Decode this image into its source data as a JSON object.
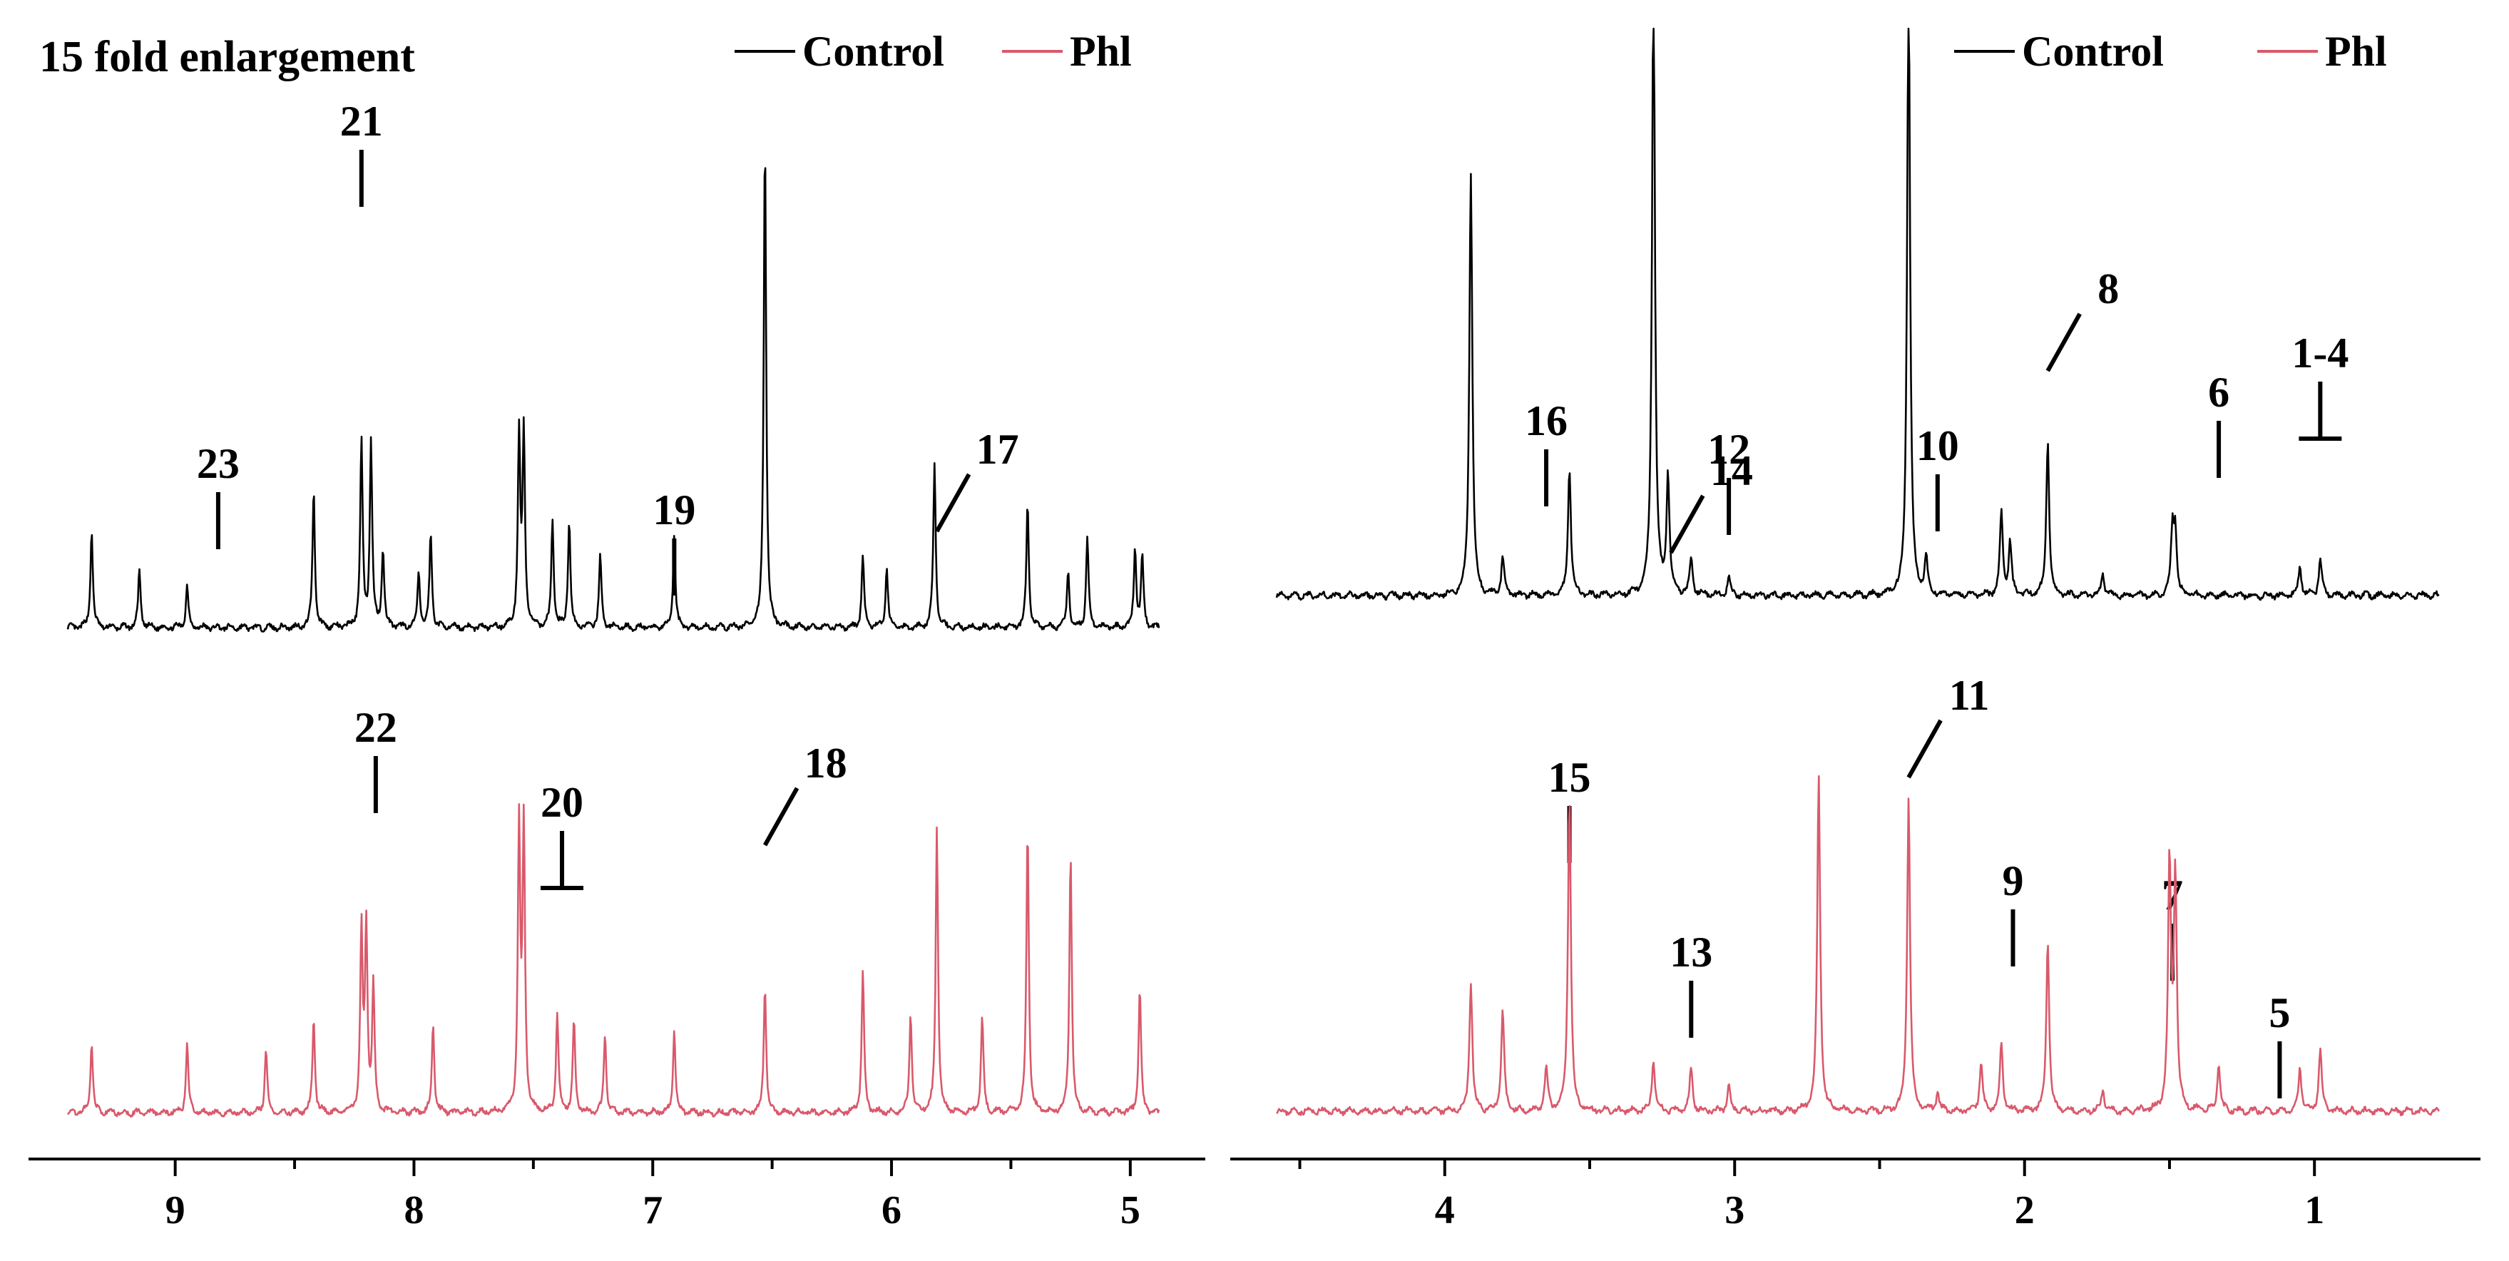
{
  "chart_data": [
    {
      "type": "line",
      "title": "",
      "annotation": "15 fold enlargement",
      "xlabel": "",
      "ylabel": "",
      "xlim": [
        9.45,
        4.88
      ],
      "x_ticks": [
        "9",
        "8",
        "7",
        "6",
        "5"
      ],
      "legend": {
        "position": "top-right"
      },
      "series": [
        {
          "name": "Control",
          "color": "#000000",
          "peaks": [
            {
              "x": 9.35,
              "h": 0.27
            },
            {
              "x": 9.15,
              "h": 0.16
            },
            {
              "x": 8.95,
              "h": 0.12
            },
            {
              "x": 8.42,
              "h": 0.39
            },
            {
              "x": 8.22,
              "h": 0.52
            },
            {
              "x": 8.18,
              "h": 0.52
            },
            {
              "x": 8.13,
              "h": 0.22
            },
            {
              "x": 7.98,
              "h": 0.15
            },
            {
              "x": 7.93,
              "h": 0.26
            },
            {
              "x": 7.56,
              "h": 0.54
            },
            {
              "x": 7.54,
              "h": 0.54
            },
            {
              "x": 7.42,
              "h": 0.3
            },
            {
              "x": 7.35,
              "h": 0.3
            },
            {
              "x": 7.22,
              "h": 0.2
            },
            {
              "x": 6.91,
              "h": 0.26
            },
            {
              "x": 6.53,
              "h": 1.38
            },
            {
              "x": 6.12,
              "h": 0.2
            },
            {
              "x": 6.02,
              "h": 0.17
            },
            {
              "x": 5.82,
              "h": 0.46
            },
            {
              "x": 5.43,
              "h": 0.35
            },
            {
              "x": 5.26,
              "h": 0.16
            },
            {
              "x": 5.18,
              "h": 0.25
            },
            {
              "x": 4.98,
              "h": 0.22
            },
            {
              "x": 4.95,
              "h": 0.2
            }
          ],
          "labels": [
            {
              "text": "22",
              "x": 8.16
            },
            {
              "text": "20",
              "x": 7.38
            },
            {
              "text": "18",
              "x": 6.53
            }
          ]
        },
        {
          "name": "Phl",
          "color": "#d9596b",
          "peaks": [
            {
              "x": 9.35,
              "h": 0.2
            },
            {
              "x": 8.95,
              "h": 0.2
            },
            {
              "x": 8.62,
              "h": 0.18
            },
            {
              "x": 8.42,
              "h": 0.27
            },
            {
              "x": 8.22,
              "h": 0.5
            },
            {
              "x": 8.2,
              "h": 0.52
            },
            {
              "x": 8.17,
              "h": 0.35
            },
            {
              "x": 7.92,
              "h": 0.25
            },
            {
              "x": 7.56,
              "h": 0.8
            },
            {
              "x": 7.54,
              "h": 0.8
            },
            {
              "x": 7.4,
              "h": 0.28
            },
            {
              "x": 7.33,
              "h": 0.26
            },
            {
              "x": 7.2,
              "h": 0.22
            },
            {
              "x": 6.91,
              "h": 0.23
            },
            {
              "x": 6.53,
              "h": 0.36
            },
            {
              "x": 6.12,
              "h": 0.4
            },
            {
              "x": 5.92,
              "h": 0.28
            },
            {
              "x": 5.81,
              "h": 0.8
            },
            {
              "x": 5.62,
              "h": 0.27
            },
            {
              "x": 5.43,
              "h": 0.8
            },
            {
              "x": 5.25,
              "h": 0.73
            },
            {
              "x": 4.96,
              "h": 0.35
            }
          ],
          "labels": [
            {
              "text": "23",
              "x": 8.82
            },
            {
              "text": "21",
              "x": 8.22
            },
            {
              "text": "19",
              "x": 6.91
            },
            {
              "text": "17",
              "x": 5.81
            }
          ]
        }
      ]
    },
    {
      "type": "line",
      "title": "",
      "xlabel": "",
      "ylabel": "",
      "xlim": [
        4.58,
        0.57
      ],
      "x_ticks": [
        "4",
        "3",
        "2",
        "1"
      ],
      "legend": {
        "position": "top-right"
      },
      "series": [
        {
          "name": "Control",
          "color": "#000000",
          "peaks": [
            {
              "x": 3.91,
              "h": 1.15
            },
            {
              "x": 3.8,
              "h": 0.1
            },
            {
              "x": 3.57,
              "h": 0.35
            },
            {
              "x": 3.28,
              "h": 1.7
            },
            {
              "x": 3.23,
              "h": 0.32
            },
            {
              "x": 3.15,
              "h": 0.1
            },
            {
              "x": 3.02,
              "h": 0.05
            },
            {
              "x": 2.4,
              "h": 1.7
            },
            {
              "x": 2.34,
              "h": 0.1
            },
            {
              "x": 2.08,
              "h": 0.22
            },
            {
              "x": 2.05,
              "h": 0.14
            },
            {
              "x": 1.92,
              "h": 0.42
            },
            {
              "x": 1.73,
              "h": 0.06
            },
            {
              "x": 1.49,
              "h": 0.17
            },
            {
              "x": 1.48,
              "h": 0.17
            },
            {
              "x": 1.05,
              "h": 0.08
            },
            {
              "x": 0.98,
              "h": 0.1
            }
          ],
          "labels": [
            {
              "text": "15",
              "x": 3.57
            },
            {
              "text": "13",
              "x": 3.15
            },
            {
              "text": "11",
              "x": 2.4
            },
            {
              "text": "9",
              "x": 2.04
            },
            {
              "text": "7",
              "x": 1.49
            },
            {
              "text": "5",
              "x": 1.12
            }
          ]
        },
        {
          "name": "Phl",
          "color": "#d9596b",
          "peaks": [
            {
              "x": 3.91,
              "h": 0.35
            },
            {
              "x": 3.8,
              "h": 0.27
            },
            {
              "x": 3.57,
              "h": 0.85
            },
            {
              "x": 3.65,
              "h": 0.12
            },
            {
              "x": 3.28,
              "h": 0.14
            },
            {
              "x": 3.15,
              "h": 0.12
            },
            {
              "x": 3.02,
              "h": 0.07
            },
            {
              "x": 2.71,
              "h": 0.9
            },
            {
              "x": 2.4,
              "h": 0.85
            },
            {
              "x": 2.3,
              "h": 0.05
            },
            {
              "x": 2.15,
              "h": 0.13
            },
            {
              "x": 2.08,
              "h": 0.18
            },
            {
              "x": 1.92,
              "h": 0.46
            },
            {
              "x": 1.73,
              "h": 0.06
            },
            {
              "x": 1.5,
              "h": 0.66
            },
            {
              "x": 1.48,
              "h": 0.64
            },
            {
              "x": 1.33,
              "h": 0.13
            },
            {
              "x": 1.05,
              "h": 0.12
            },
            {
              "x": 0.98,
              "h": 0.17
            }
          ],
          "labels": [
            {
              "text": "16",
              "x": 3.65
            },
            {
              "text": "14",
              "x": 3.22
            },
            {
              "text": "12",
              "x": 3.02
            },
            {
              "text": "10",
              "x": 2.3
            },
            {
              "text": "8",
              "x": 1.92
            },
            {
              "text": "6",
              "x": 1.33
            },
            {
              "text": "1-4",
              "x": 0.98
            }
          ]
        }
      ]
    }
  ]
}
